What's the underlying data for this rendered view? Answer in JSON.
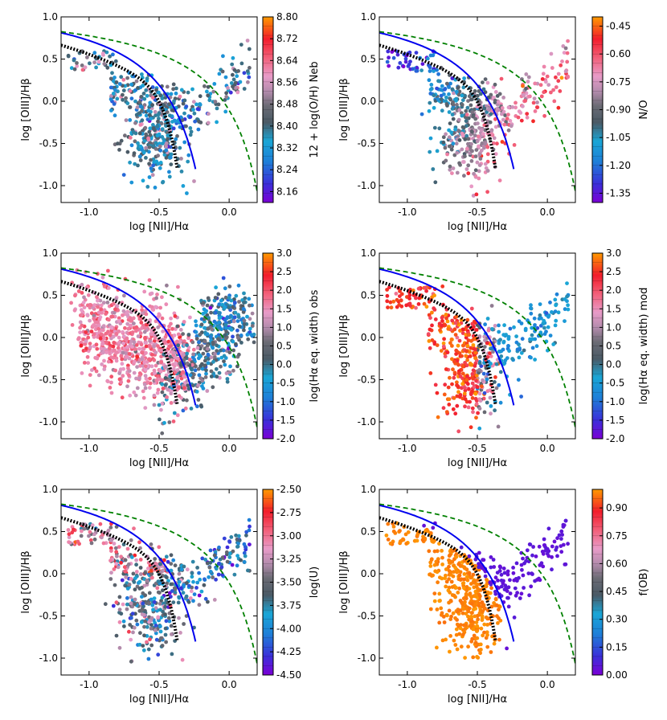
{
  "figure": {
    "colors": {
      "kewley_curve": "#008000",
      "kauffmann_curve": "#0000ee",
      "stasinska_curve": "#000000",
      "frame": "#000000"
    }
  },
  "chart_data": [
    {
      "type": "scatter",
      "xlabel": "log [NII]/Hα",
      "ylabel": "log [OIII]/Hβ",
      "xlim": [
        -1.2,
        0.2
      ],
      "ylim": [
        -1.2,
        1.0
      ],
      "x_ticks": [
        "-1.0",
        "-0.5",
        "0.0"
      ],
      "y_ticks": [
        "1.0",
        "0.5",
        "0.0",
        "-0.5",
        "-1.0"
      ],
      "colorbar": {
        "label": "12 + log(O/H) Neb",
        "range": [
          8.12,
          8.8
        ],
        "ticks": [
          "8.80",
          "8.72",
          "8.64",
          "8.56",
          "8.48",
          "8.40",
          "8.32",
          "8.24",
          "8.16"
        ],
        "colormap": "purple-blue-gray-pink-red-orange"
      },
      "distribution": "agn",
      "color_mode": "gray_mix"
    },
    {
      "type": "scatter",
      "xlabel": "log [NII]/Hα",
      "ylabel": "log [OIII]/Hβ",
      "xlim": [
        -1.2,
        0.2
      ],
      "ylim": [
        -1.2,
        1.0
      ],
      "x_ticks": [
        "-1.0",
        "-0.5",
        "0.0"
      ],
      "y_ticks": [
        "1.0",
        "0.5",
        "0.0",
        "-0.5",
        "-1.0"
      ],
      "colorbar": {
        "label": "N/O",
        "range": [
          -1.4,
          -0.4
        ],
        "ticks": [
          "-0.45",
          "-0.60",
          "-0.75",
          "-0.90",
          "-1.05",
          "-1.20",
          "-1.35"
        ],
        "colormap": "purple-blue-gray-pink-red-orange"
      },
      "distribution": "agn",
      "color_mode": "blue_left_red_right"
    },
    {
      "type": "scatter",
      "xlabel": "log [NII]/Hα",
      "ylabel": "log [OIII]/Hβ",
      "xlim": [
        -1.2,
        0.2
      ],
      "ylim": [
        -1.2,
        1.0
      ],
      "x_ticks": [
        "-1.0",
        "-0.5",
        "0.0"
      ],
      "y_ticks": [
        "1.0",
        "0.5",
        "0.0",
        "-0.5",
        "-1.0"
      ],
      "colorbar": {
        "label": "log(Hα eq. width) obs",
        "range": [
          -2.0,
          3.0
        ],
        "ticks": [
          "3.0",
          "2.5",
          "2.0",
          "1.5",
          "1.0",
          "0.5",
          "0.0",
          "-0.5",
          "-1.0",
          "-1.5",
          "-2.0"
        ],
        "colormap": "purple-blue-gray-pink-red-orange"
      },
      "distribution": "dense",
      "color_mode": "pink_left_teal_right"
    },
    {
      "type": "scatter",
      "xlabel": "log [NII]/Hα",
      "ylabel": "log [OIII]/Hβ",
      "xlim": [
        -1.2,
        0.2
      ],
      "ylim": [
        -1.2,
        1.0
      ],
      "x_ticks": [
        "-1.0",
        "-0.5",
        "0.0"
      ],
      "y_ticks": [
        "1.0",
        "0.5",
        "0.0",
        "-0.5",
        "-1.0"
      ],
      "colorbar": {
        "label": "log(Hα eq. width) mod",
        "range": [
          -2.0,
          3.0
        ],
        "ticks": [
          "3.0",
          "2.5",
          "2.0",
          "1.5",
          "1.0",
          "0.5",
          "0.0",
          "-0.5",
          "-1.0",
          "-1.5",
          "-2.0"
        ],
        "colormap": "purple-blue-gray-pink-red-orange"
      },
      "distribution": "agn",
      "color_mode": "orange_left_blue_right"
    },
    {
      "type": "scatter",
      "xlabel": "log [NII]/Hα",
      "ylabel": "log [OIII]/Hβ",
      "xlim": [
        -1.2,
        0.2
      ],
      "ylim": [
        -1.2,
        1.0
      ],
      "x_ticks": [
        "-1.0",
        "-0.5",
        "0.0"
      ],
      "y_ticks": [
        "1.0",
        "0.5",
        "0.0",
        "-0.5",
        "-1.0"
      ],
      "colorbar": {
        "label": "log(U)",
        "range": [
          -4.5,
          -2.5
        ],
        "ticks": [
          "-2.50",
          "-2.75",
          "-3.00",
          "-3.25",
          "-3.50",
          "-3.75",
          "-4.00",
          "-4.25",
          "-4.50"
        ],
        "colormap": "purple-blue-gray-pink-red-orange"
      },
      "distribution": "agn",
      "color_mode": "mixed_blue"
    },
    {
      "type": "scatter",
      "xlabel": "log [NII]/Hα",
      "ylabel": "log [OIII]/Hβ",
      "xlim": [
        -1.2,
        0.2
      ],
      "ylim": [
        -1.2,
        1.0
      ],
      "x_ticks": [
        "-1.0",
        "-0.5",
        "0.0"
      ],
      "y_ticks": [
        "1.0",
        "0.5",
        "0.0",
        "-0.5",
        "-1.0"
      ],
      "colorbar": {
        "label": "f(OB)",
        "range": [
          0.0,
          1.0
        ],
        "ticks": [
          "0.90",
          "0.75",
          "0.60",
          "0.45",
          "0.30",
          "0.15",
          "0.00"
        ],
        "colormap": "purple-blue-gray-pink-red-orange"
      },
      "distribution": "agn",
      "color_mode": "orange_purple_split"
    }
  ]
}
